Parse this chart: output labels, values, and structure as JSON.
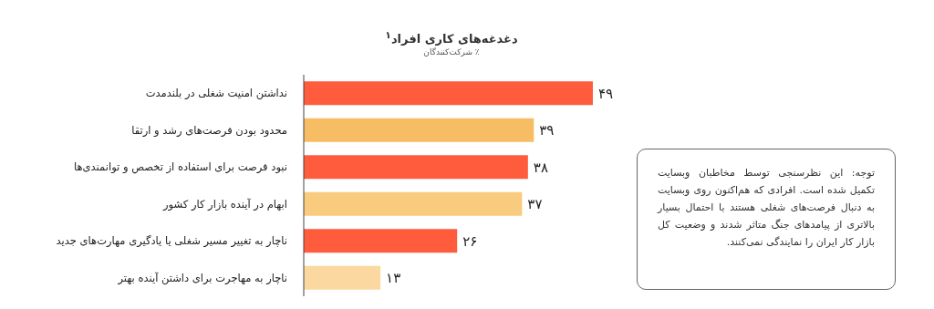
{
  "chart_data": {
    "type": "bar",
    "orientation": "horizontal",
    "title": "دغدغه‌های کاری افراد$^{۱}$",
    "subtitle": "٪ شرکت‌کنندگان",
    "categories": [
      "نداشتن امنیت شغلی در بلندمدت",
      "محدود بودن فرصت‌های رشد و ارتقا",
      "نبود فرصت برای استفاده از تخصص و توانمندی‌ها",
      "ابهام در آینده بازار کار کشور",
      "ناچار به تغییر مسیر شغلی یا یادگیری مهارت‌های جدید",
      "ناچار به مهاجرت برای داشتن آینده بهتر"
    ],
    "values": [
      49,
      39,
      38,
      37,
      26,
      13
    ],
    "value_labels": [
      "۴۹",
      "۳۹",
      "۳۸",
      "۳۷",
      "۲۶",
      "۱۳"
    ],
    "colors": [
      "#fe5c3c",
      "#f6bd64",
      "#fe5c3c",
      "#f8cb7f",
      "#fe5c3c",
      "#fad8a0"
    ],
    "annotations": [
      "توجه: این نظرسنجی توسط مخاطبان وبسایت تکمیل شده است. افرادی که هم‌اکنون روی وبسایت به دنبال فرصت‌های شغلی هستند با احتمال بسیار بالاتری از پیامدهای جنگ متاثر شدند و وضعیت کل بازار کار ایران را نمایندگی نمی‌کنند."
    ]
  }
}
